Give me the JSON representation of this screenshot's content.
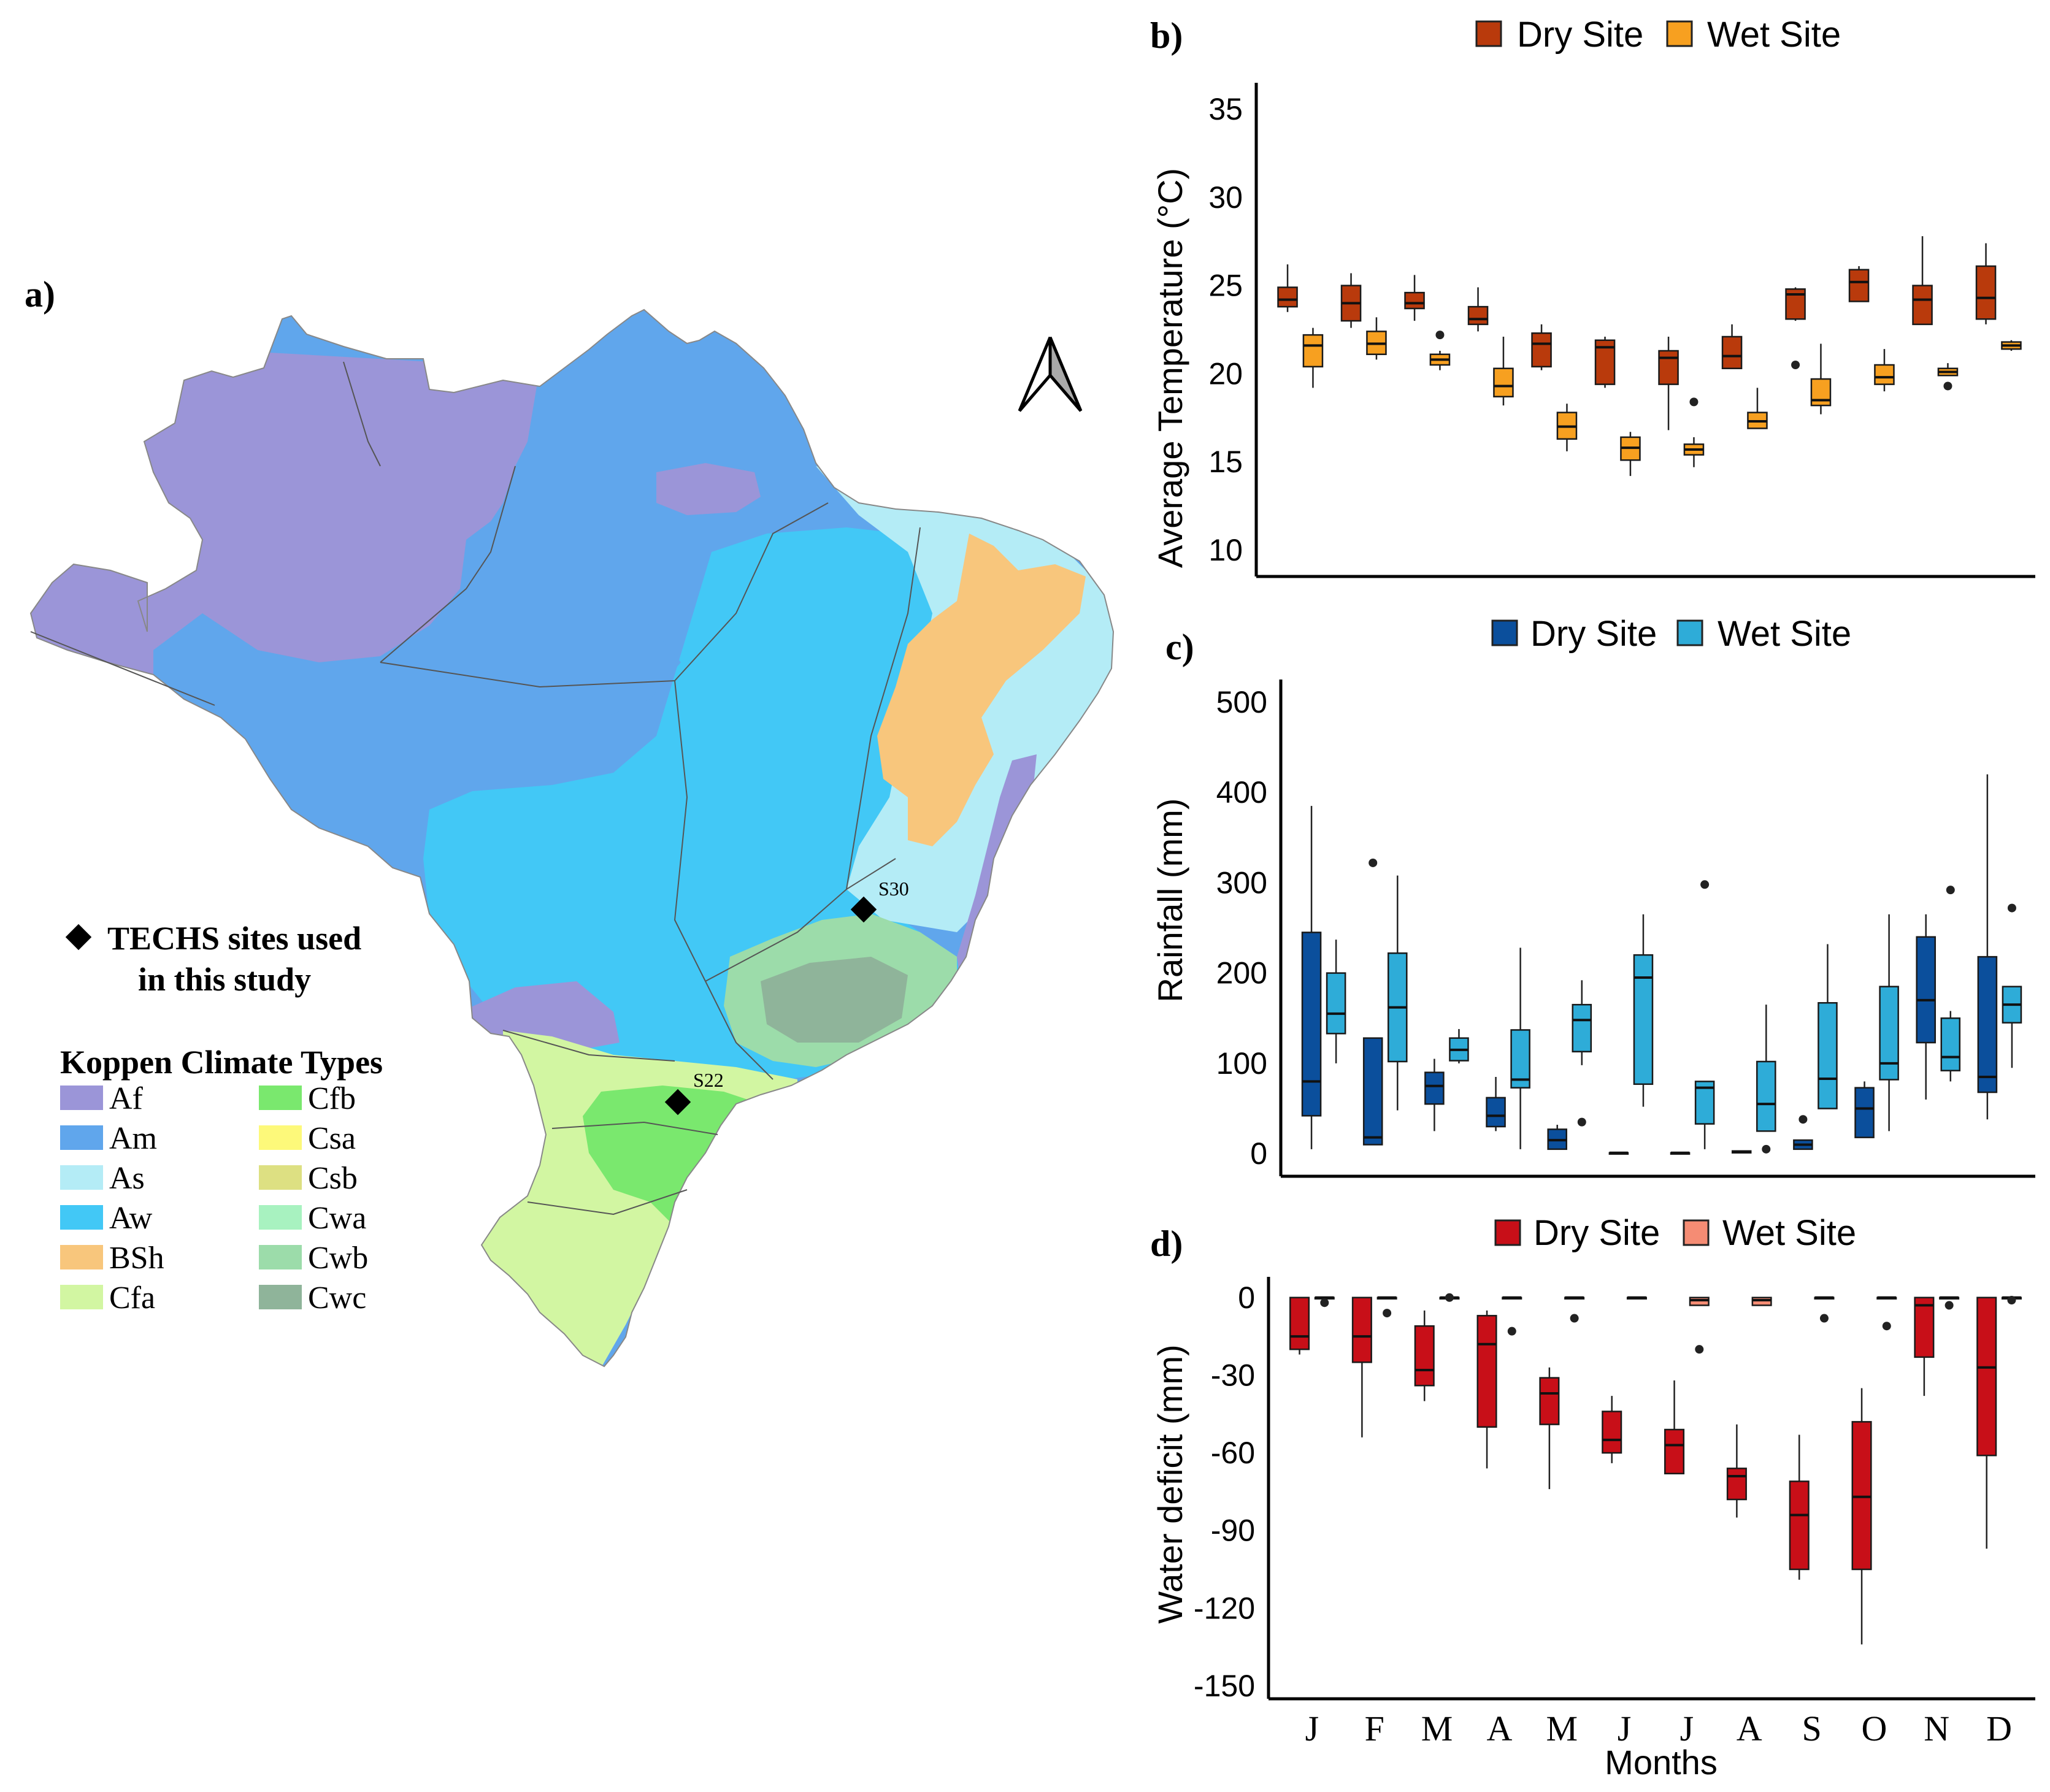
{
  "panels": {
    "a": "a)",
    "b": "b)",
    "c": "c)",
    "d": "d)"
  },
  "map": {
    "sites_legend": [
      "TECHS sites used",
      "in this study"
    ],
    "climate_title": "Koppen Climate Types",
    "site_labels": [
      "S30",
      "S22"
    ],
    "climate_types": [
      {
        "code": "Af",
        "color": "#9b95d8"
      },
      {
        "code": "Am",
        "color": "#60a6ec"
      },
      {
        "code": "As",
        "color": "#b4ecf6"
      },
      {
        "code": "Aw",
        "color": "#42c8f6"
      },
      {
        "code": "BSh",
        "color": "#f8c67c"
      },
      {
        "code": "Cfa",
        "color": "#d2f6a2"
      },
      {
        "code": "Cfb",
        "color": "#7ae86e"
      },
      {
        "code": "Csa",
        "color": "#fdf97a"
      },
      {
        "code": "Csb",
        "color": "#dde082"
      },
      {
        "code": "Cwa",
        "color": "#a8f2c0"
      },
      {
        "code": "Cwb",
        "color": "#9cdcaa"
      },
      {
        "code": "Cwc",
        "color": "#8fb49a"
      }
    ]
  },
  "chart_data": [
    {
      "type": "box",
      "panel": "b",
      "title": "",
      "ylabel": "Average Temperature (°C)",
      "xlabel": "",
      "ylim": [
        8.5,
        36.5
      ],
      "yticks": [
        10,
        15,
        20,
        25,
        30,
        35
      ],
      "categories": [
        "J",
        "F",
        "M",
        "A",
        "M",
        "J",
        "J",
        "A",
        "S",
        "O",
        "N",
        "D"
      ],
      "legend": [
        "Dry Site",
        "Wet Site"
      ],
      "series": [
        {
          "name": "Dry Site",
          "color": "#b93a0c",
          "boxes": [
            {
              "min": 23.5,
              "q1": 23.8,
              "median": 24.2,
              "q3": 24.9,
              "max": 26.2,
              "outliers": []
            },
            {
              "min": 22.6,
              "q1": 23.0,
              "median": 24.0,
              "q3": 25.0,
              "max": 25.7,
              "outliers": []
            },
            {
              "min": 23.0,
              "q1": 23.7,
              "median": 24.0,
              "q3": 24.6,
              "max": 25.6,
              "outliers": []
            },
            {
              "min": 22.4,
              "q1": 22.8,
              "median": 23.1,
              "q3": 23.8,
              "max": 24.9,
              "outliers": []
            },
            {
              "min": 20.2,
              "q1": 20.4,
              "median": 21.7,
              "q3": 22.3,
              "max": 22.8,
              "outliers": []
            },
            {
              "min": 19.2,
              "q1": 19.4,
              "median": 21.5,
              "q3": 21.9,
              "max": 22.1,
              "outliers": []
            },
            {
              "min": 16.8,
              "q1": 19.4,
              "median": 20.9,
              "q3": 21.3,
              "max": 22.1,
              "outliers": []
            },
            {
              "min": 20.3,
              "q1": 20.3,
              "median": 21.0,
              "q3": 22.1,
              "max": 22.8,
              "outliers": []
            },
            {
              "min": 23.0,
              "q1": 23.1,
              "median": 24.5,
              "q3": 24.8,
              "max": 24.9,
              "outliers": [
                20.5
              ]
            },
            {
              "min": 24.1,
              "q1": 24.1,
              "median": 25.2,
              "q3": 25.9,
              "max": 26.1,
              "outliers": []
            },
            {
              "min": 22.8,
              "q1": 22.8,
              "median": 24.2,
              "q3": 25.0,
              "max": 27.8,
              "outliers": []
            },
            {
              "min": 22.8,
              "q1": 23.1,
              "median": 24.3,
              "q3": 26.1,
              "max": 27.4,
              "outliers": []
            }
          ]
        },
        {
          "name": "Wet Site",
          "color": "#f7a020",
          "boxes": [
            {
              "min": 19.2,
              "q1": 20.4,
              "median": 21.6,
              "q3": 22.2,
              "max": 22.6,
              "outliers": []
            },
            {
              "min": 20.8,
              "q1": 21.1,
              "median": 21.7,
              "q3": 22.4,
              "max": 23.2,
              "outliers": []
            },
            {
              "min": 20.2,
              "q1": 20.5,
              "median": 20.8,
              "q3": 21.1,
              "max": 21.3,
              "outliers": [
                22.2
              ]
            },
            {
              "min": 18.2,
              "q1": 18.7,
              "median": 19.3,
              "q3": 20.3,
              "max": 22.1,
              "outliers": []
            },
            {
              "min": 15.6,
              "q1": 16.3,
              "median": 17.0,
              "q3": 17.8,
              "max": 18.3,
              "outliers": []
            },
            {
              "min": 14.2,
              "q1": 15.1,
              "median": 15.8,
              "q3": 16.4,
              "max": 16.7,
              "outliers": []
            },
            {
              "min": 14.7,
              "q1": 15.4,
              "median": 15.7,
              "q3": 16.0,
              "max": 16.4,
              "outliers": [
                18.4
              ]
            },
            {
              "min": 16.9,
              "q1": 16.9,
              "median": 17.3,
              "q3": 17.8,
              "max": 19.2,
              "outliers": []
            },
            {
              "min": 17.7,
              "q1": 18.2,
              "median": 18.5,
              "q3": 19.7,
              "max": 21.7,
              "outliers": []
            },
            {
              "min": 19.0,
              "q1": 19.4,
              "median": 19.8,
              "q3": 20.5,
              "max": 21.4,
              "outliers": []
            },
            {
              "min": 19.9,
              "q1": 19.9,
              "median": 20.1,
              "q3": 20.3,
              "max": 20.6,
              "outliers": [
                19.3
              ]
            },
            {
              "min": 21.3,
              "q1": 21.4,
              "median": 21.6,
              "q3": 21.8,
              "max": 21.9,
              "outliers": []
            }
          ]
        }
      ]
    },
    {
      "type": "box",
      "panel": "c",
      "title": "",
      "ylabel": "Rainfall (mm)",
      "xlabel": "",
      "ylim": [
        -25,
        525
      ],
      "yticks": [
        0,
        100,
        200,
        300,
        400,
        500
      ],
      "categories": [
        "J",
        "F",
        "M",
        "A",
        "M",
        "J",
        "J",
        "A",
        "S",
        "O",
        "N",
        "D"
      ],
      "legend": [
        "Dry Site",
        "Wet Site"
      ],
      "series": [
        {
          "name": "Dry Site",
          "color": "#0b4f9c",
          "boxes": [
            {
              "min": 5,
              "q1": 42,
              "median": 80,
              "q3": 245,
              "max": 385,
              "outliers": []
            },
            {
              "min": 10,
              "q1": 10,
              "median": 18,
              "q3": 128,
              "max": 128,
              "outliers": [
                322
              ]
            },
            {
              "min": 25,
              "q1": 55,
              "median": 75,
              "q3": 90,
              "max": 105,
              "outliers": []
            },
            {
              "min": 25,
              "q1": 30,
              "median": 42,
              "q3": 62,
              "max": 85,
              "outliers": []
            },
            {
              "min": 5,
              "q1": 5,
              "median": 15,
              "q3": 27,
              "max": 32,
              "outliers": []
            },
            {
              "min": 1,
              "q1": 1,
              "median": 1,
              "q3": 1,
              "max": 1,
              "outliers": []
            },
            {
              "min": 1,
              "q1": 1,
              "median": 1,
              "q3": 1,
              "max": 1,
              "outliers": []
            },
            {
              "min": 1,
              "q1": 1,
              "median": 2,
              "q3": 3,
              "max": 3,
              "outliers": []
            },
            {
              "min": 5,
              "q1": 5,
              "median": 10,
              "q3": 15,
              "max": 15,
              "outliers": [
                38
              ]
            },
            {
              "min": 18,
              "q1": 18,
              "median": 50,
              "q3": 73,
              "max": 80,
              "outliers": []
            },
            {
              "min": 60,
              "q1": 123,
              "median": 170,
              "q3": 240,
              "max": 265,
              "outliers": []
            },
            {
              "min": 38,
              "q1": 68,
              "median": 85,
              "q3": 218,
              "max": 420,
              "outliers": []
            }
          ]
        },
        {
          "name": "Wet Site",
          "color": "#2eacd8",
          "boxes": [
            {
              "min": 100,
              "q1": 133,
              "median": 155,
              "q3": 200,
              "max": 237,
              "outliers": []
            },
            {
              "min": 48,
              "q1": 102,
              "median": 162,
              "q3": 222,
              "max": 308,
              "outliers": []
            },
            {
              "min": 100,
              "q1": 103,
              "median": 115,
              "q3": 128,
              "max": 138,
              "outliers": []
            },
            {
              "min": 5,
              "q1": 73,
              "median": 82,
              "q3": 137,
              "max": 228,
              "outliers": []
            },
            {
              "min": 98,
              "q1": 113,
              "median": 148,
              "q3": 165,
              "max": 192,
              "outliers": [
                35
              ]
            },
            {
              "min": 52,
              "q1": 77,
              "median": 195,
              "q3": 220,
              "max": 265,
              "outliers": []
            },
            {
              "min": 5,
              "q1": 33,
              "median": 73,
              "q3": 80,
              "max": 80,
              "outliers": [
                298
              ]
            },
            {
              "min": 25,
              "q1": 25,
              "median": 55,
              "q3": 102,
              "max": 165,
              "outliers": [
                5
              ]
            },
            {
              "min": 50,
              "q1": 50,
              "median": 83,
              "q3": 167,
              "max": 232,
              "outliers": []
            },
            {
              "min": 25,
              "q1": 82,
              "median": 100,
              "q3": 185,
              "max": 265,
              "outliers": []
            },
            {
              "min": 80,
              "q1": 92,
              "median": 107,
              "q3": 150,
              "max": 158,
              "outliers": [
                292
              ]
            },
            {
              "min": 95,
              "q1": 145,
              "median": 165,
              "q3": 185,
              "max": 185,
              "outliers": [
                272
              ]
            }
          ]
        }
      ]
    },
    {
      "type": "box",
      "panel": "d",
      "title": "",
      "ylabel": "Water deficit (mm)",
      "xlabel": "Months",
      "ylim": [
        -155,
        8
      ],
      "yticks": [
        0,
        -30,
        -60,
        -90,
        -120,
        -150
      ],
      "categories": [
        "J",
        "F",
        "M",
        "A",
        "M",
        "J",
        "J",
        "A",
        "S",
        "O",
        "N",
        "D"
      ],
      "legend": [
        "Dry Site",
        "Wet Site"
      ],
      "series": [
        {
          "name": "Dry Site",
          "color": "#c80f18",
          "boxes": [
            {
              "min": -22,
              "q1": -20,
              "median": -15,
              "q3": 0,
              "max": 0,
              "outliers": []
            },
            {
              "min": -54,
              "q1": -25,
              "median": -15,
              "q3": 0,
              "max": 0,
              "outliers": []
            },
            {
              "min": -40,
              "q1": -34,
              "median": -28,
              "q3": -11,
              "max": -5,
              "outliers": []
            },
            {
              "min": -66,
              "q1": -50,
              "median": -18,
              "q3": -7,
              "max": -5,
              "outliers": []
            },
            {
              "min": -74,
              "q1": -49,
              "median": -37,
              "q3": -31,
              "max": -27,
              "outliers": []
            },
            {
              "min": -64,
              "q1": -60,
              "median": -55,
              "q3": -44,
              "max": -38,
              "outliers": []
            },
            {
              "min": -68,
              "q1": -68,
              "median": -57,
              "q3": -51,
              "max": -32,
              "outliers": []
            },
            {
              "min": -85,
              "q1": -78,
              "median": -69,
              "q3": -66,
              "max": -49,
              "outliers": []
            },
            {
              "min": -109,
              "q1": -105,
              "median": -84,
              "q3": -71,
              "max": -53,
              "outliers": []
            },
            {
              "min": -134,
              "q1": -105,
              "median": -77,
              "q3": -48,
              "max": -35,
              "outliers": []
            },
            {
              "min": -38,
              "q1": -23,
              "median": -3,
              "q3": 0,
              "max": 0,
              "outliers": []
            },
            {
              "min": -97,
              "q1": -61,
              "median": -27,
              "q3": 0,
              "max": 0,
              "outliers": []
            }
          ]
        },
        {
          "name": "Wet Site",
          "color": "#f58c74",
          "boxes": [
            {
              "min": 0,
              "q1": 0,
              "median": 0,
              "q3": 0,
              "max": 0,
              "outliers": [
                -2
              ]
            },
            {
              "min": 0,
              "q1": 0,
              "median": 0,
              "q3": 0,
              "max": 0,
              "outliers": [
                -6
              ]
            },
            {
              "min": 0,
              "q1": 0,
              "median": 0,
              "q3": 0,
              "max": 0,
              "outliers": [
                0
              ]
            },
            {
              "min": 0,
              "q1": 0,
              "median": 0,
              "q3": 0,
              "max": 0,
              "outliers": [
                -13
              ]
            },
            {
              "min": 0,
              "q1": 0,
              "median": 0,
              "q3": 0,
              "max": 0,
              "outliers": [
                -8
              ]
            },
            {
              "min": 0,
              "q1": 0,
              "median": 0,
              "q3": 0,
              "max": 0,
              "outliers": []
            },
            {
              "min": -3,
              "q1": -3,
              "median": -1,
              "q3": 0,
              "max": 0,
              "outliers": [
                -20
              ]
            },
            {
              "min": -3,
              "q1": -3,
              "median": -1,
              "q3": 0,
              "max": 0,
              "outliers": []
            },
            {
              "min": 0,
              "q1": 0,
              "median": 0,
              "q3": 0,
              "max": 0,
              "outliers": [
                -8
              ]
            },
            {
              "min": 0,
              "q1": 0,
              "median": 0,
              "q3": 0,
              "max": 0,
              "outliers": [
                -11
              ]
            },
            {
              "min": 0,
              "q1": 0,
              "median": 0,
              "q3": 0,
              "max": 0,
              "outliers": [
                -3
              ]
            },
            {
              "min": 0,
              "q1": 0,
              "median": 0,
              "q3": 0,
              "max": 0,
              "outliers": [
                -1
              ]
            }
          ]
        }
      ]
    }
  ]
}
